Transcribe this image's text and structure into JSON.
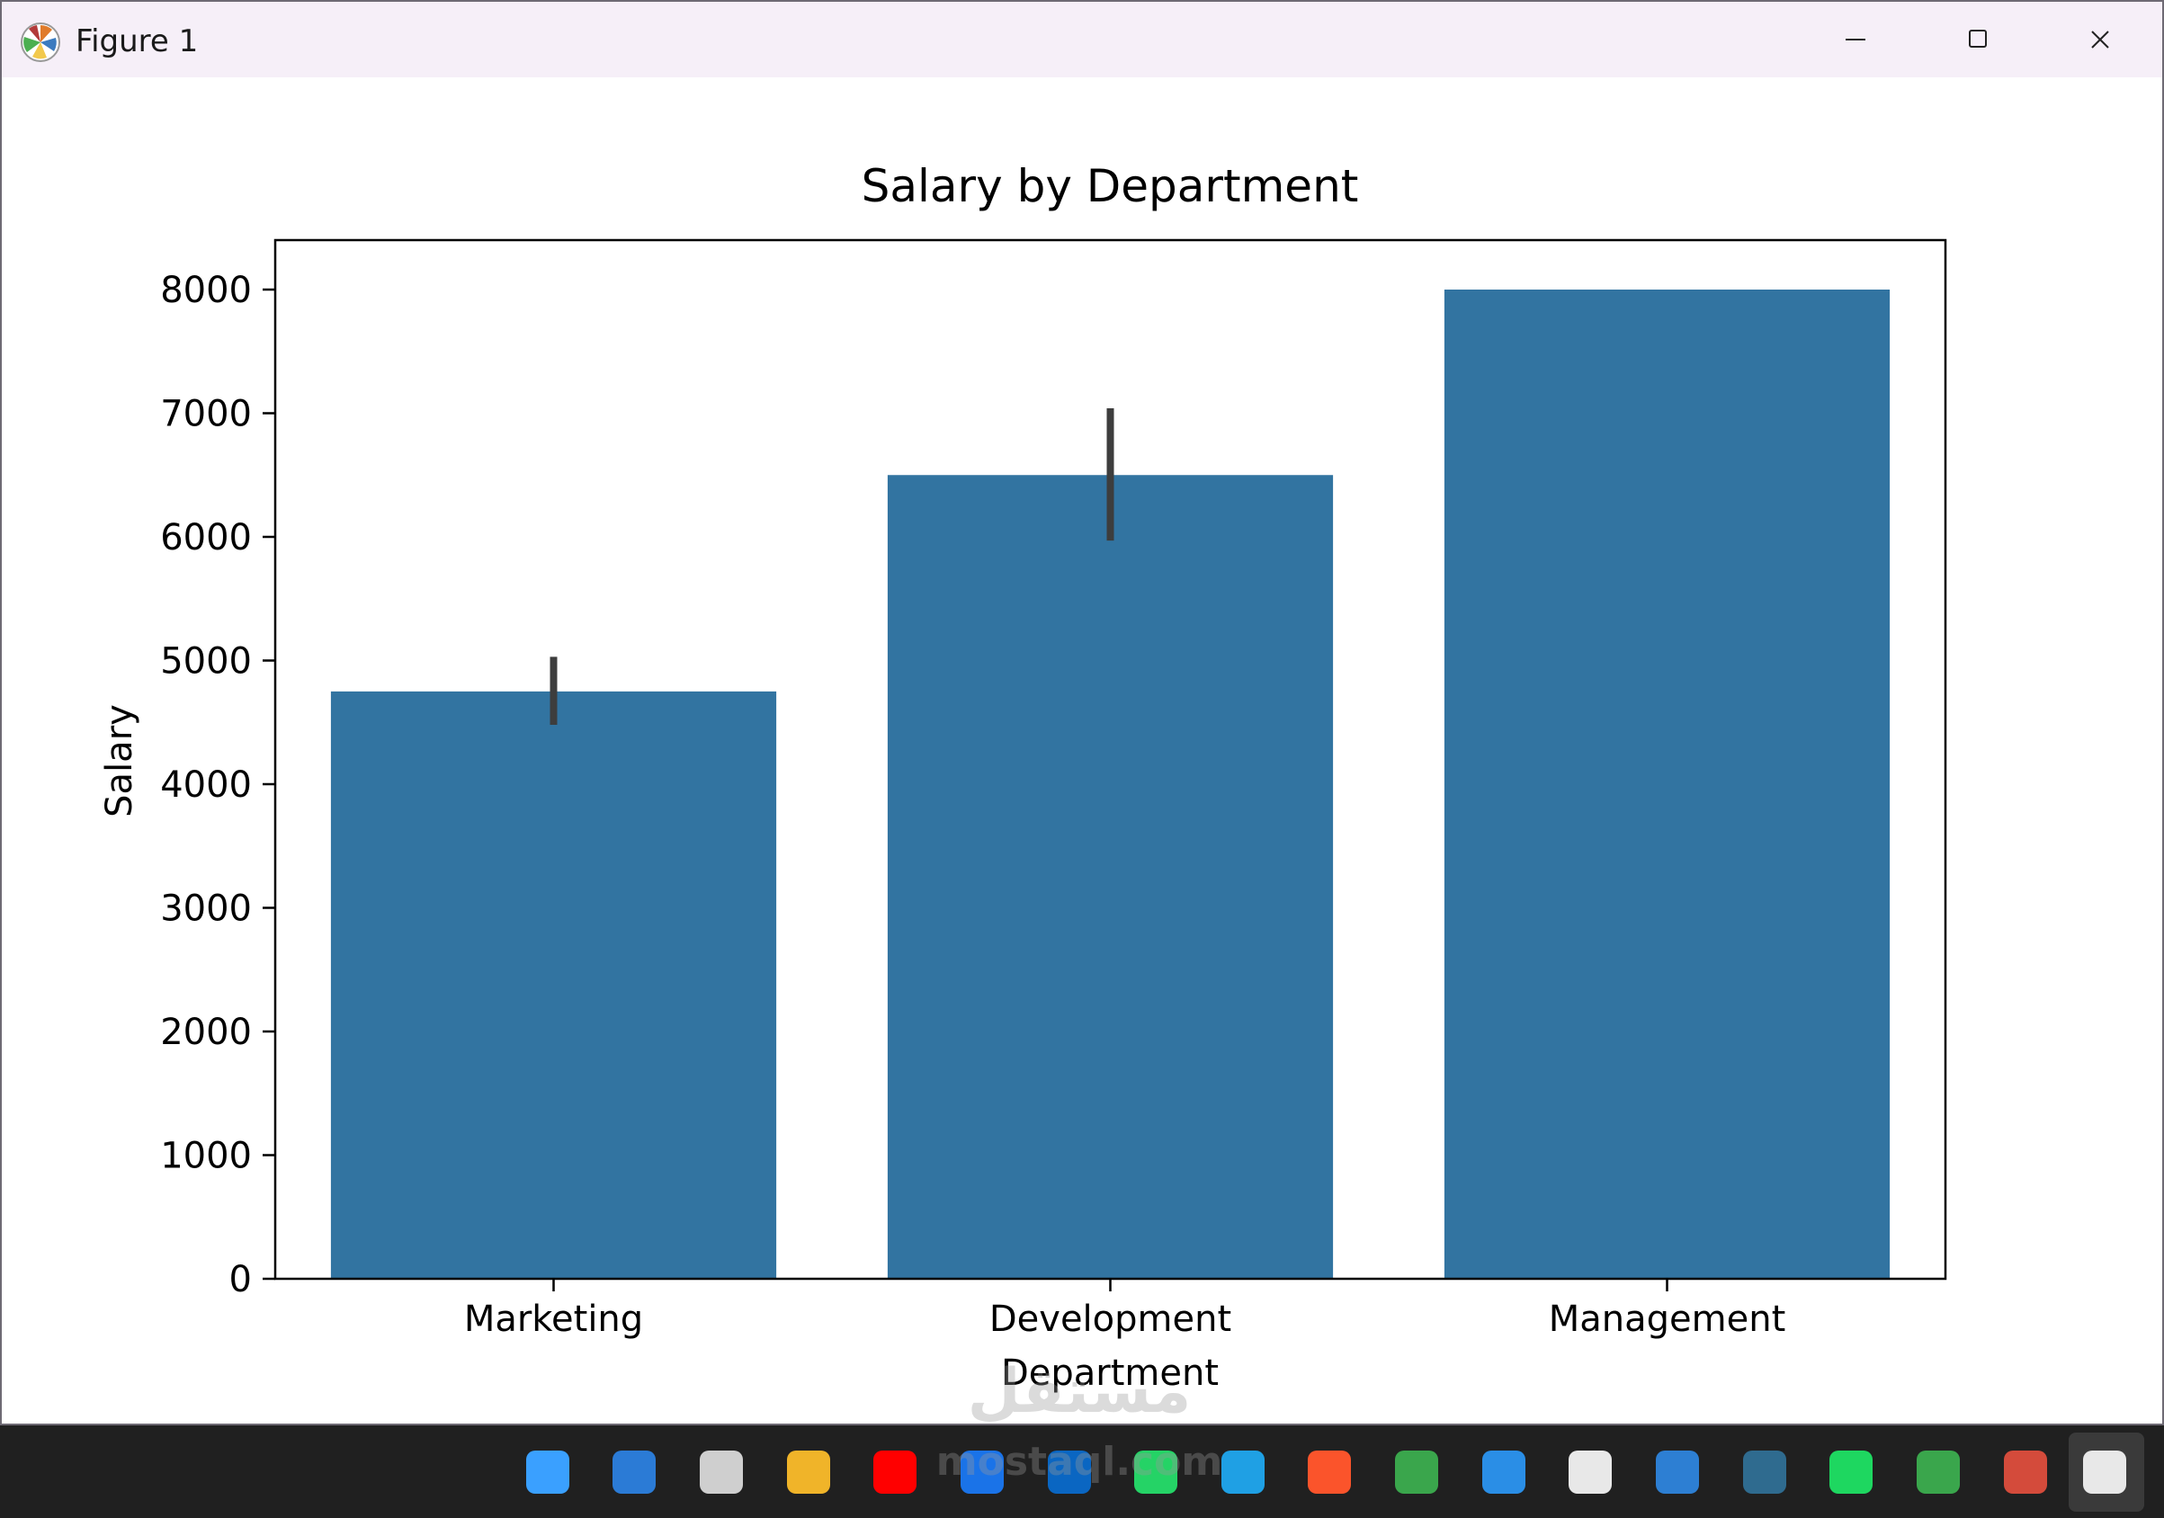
{
  "window": {
    "title": "Figure 1",
    "icon": "matplotlib-logo-icon"
  },
  "chart_data": {
    "type": "bar",
    "title": "Salary by Department",
    "xlabel": "Department",
    "ylabel": "Salary",
    "categories": [
      "Marketing",
      "Development",
      "Management"
    ],
    "values": [
      4750,
      6500,
      8000
    ],
    "error_bars": [
      [
        4480,
        5030
      ],
      [
        5970,
        7040
      ],
      [
        8000,
        8000
      ]
    ],
    "ylim": [
      0,
      8400
    ],
    "yticks": [
      0,
      1000,
      2000,
      3000,
      4000,
      5000,
      6000,
      7000,
      8000
    ],
    "grid": false,
    "colors": {
      "bar": "#3274a1",
      "error": "#3d3d3d"
    }
  },
  "taskbar": {
    "icons": [
      "start-icon",
      "search-icon",
      "task-view-icon",
      "file-explorer-icon",
      "youtube-icon",
      "outlook-icon",
      "linkedin-icon",
      "whatsapp-icon",
      "edge-icon",
      "brave-icon",
      "circle-app-icon",
      "vscode-icon",
      "chatgpt-icon",
      "app-icon",
      "mysql-icon",
      "spotify-icon",
      "circle-app-2-icon",
      "excel-icon",
      "matplotlib-icon"
    ]
  },
  "watermark": {
    "text": "mostaql.com"
  }
}
